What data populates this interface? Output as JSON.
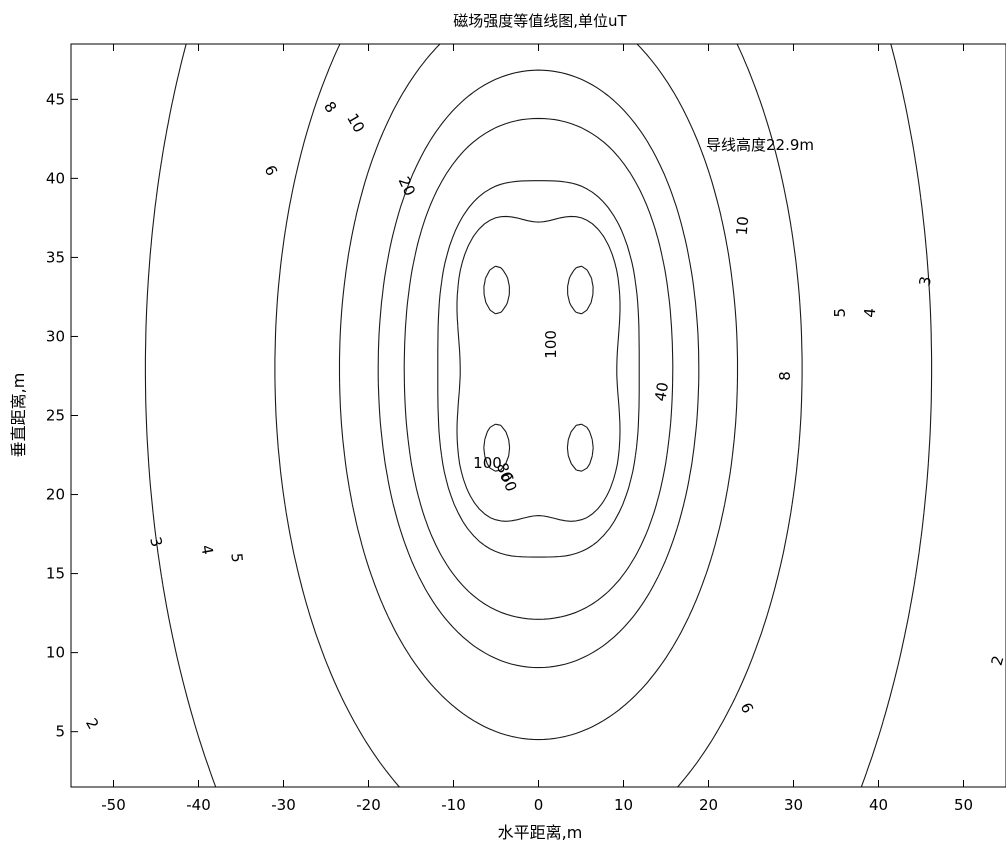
{
  "chart_data": {
    "type": "contour",
    "title": "磁场强度等值线图,单位uT",
    "xlabel": "水平距离,m",
    "ylabel": "垂直距离,m",
    "xlim": [
      -55,
      55
    ],
    "ylim": [
      1.5,
      48.5
    ],
    "xticks": [
      -50,
      -40,
      -30,
      -20,
      -10,
      0,
      10,
      20,
      30,
      40,
      50
    ],
    "yticks": [
      5,
      10,
      15,
      20,
      25,
      30,
      35,
      40,
      45
    ],
    "annotation": "导线高度22.9m",
    "grid": false,
    "contour_levels": [
      2,
      3,
      4,
      5,
      6,
      8,
      10,
      20,
      40,
      60,
      80,
      100
    ],
    "contour_labels": [
      {
        "text": "2",
        "x": -52.5,
        "y": 5.5,
        "rot": 60
      },
      {
        "text": "2",
        "x": 54,
        "y": 9.5,
        "rot": -75
      },
      {
        "text": "3",
        "x": -45,
        "y": 17,
        "rot": 75
      },
      {
        "text": "3",
        "x": 45.5,
        "y": 33.5,
        "rot": -80
      },
      {
        "text": "4",
        "x": -39,
        "y": 16.5,
        "rot": 80
      },
      {
        "text": "4",
        "x": 39,
        "y": 31.5,
        "rot": -85
      },
      {
        "text": "5",
        "x": -35.5,
        "y": 16,
        "rot": 85
      },
      {
        "text": "5",
        "x": 35.5,
        "y": 31.5,
        "rot": -90
      },
      {
        "text": "6",
        "x": -31.5,
        "y": 40.5,
        "rot": 65
      },
      {
        "text": "6",
        "x": 24.5,
        "y": 6.5,
        "rot": 65
      },
      {
        "text": "8",
        "x": -24.5,
        "y": 44.5,
        "rot": 55
      },
      {
        "text": "8",
        "x": 29,
        "y": 27.5,
        "rot": -90
      },
      {
        "text": "10",
        "x": -21.5,
        "y": 43.5,
        "rot": 60
      },
      {
        "text": "10",
        "x": 24,
        "y": 37,
        "rot": -85
      },
      {
        "text": "20",
        "x": -15.5,
        "y": 39.5,
        "rot": 65
      },
      {
        "text": "40",
        "x": 14.5,
        "y": 26.5,
        "rot": -80
      },
      {
        "text": "100",
        "x": 1.5,
        "y": 29.5,
        "rot": -90
      },
      {
        "text": "100",
        "x": -6,
        "y": 22,
        "rot": 0
      },
      {
        "text": "80",
        "x": -4,
        "y": 21.4,
        "rot": 70
      },
      {
        "text": "60",
        "x": -3.5,
        "y": 20.8,
        "rot": 70
      }
    ]
  }
}
